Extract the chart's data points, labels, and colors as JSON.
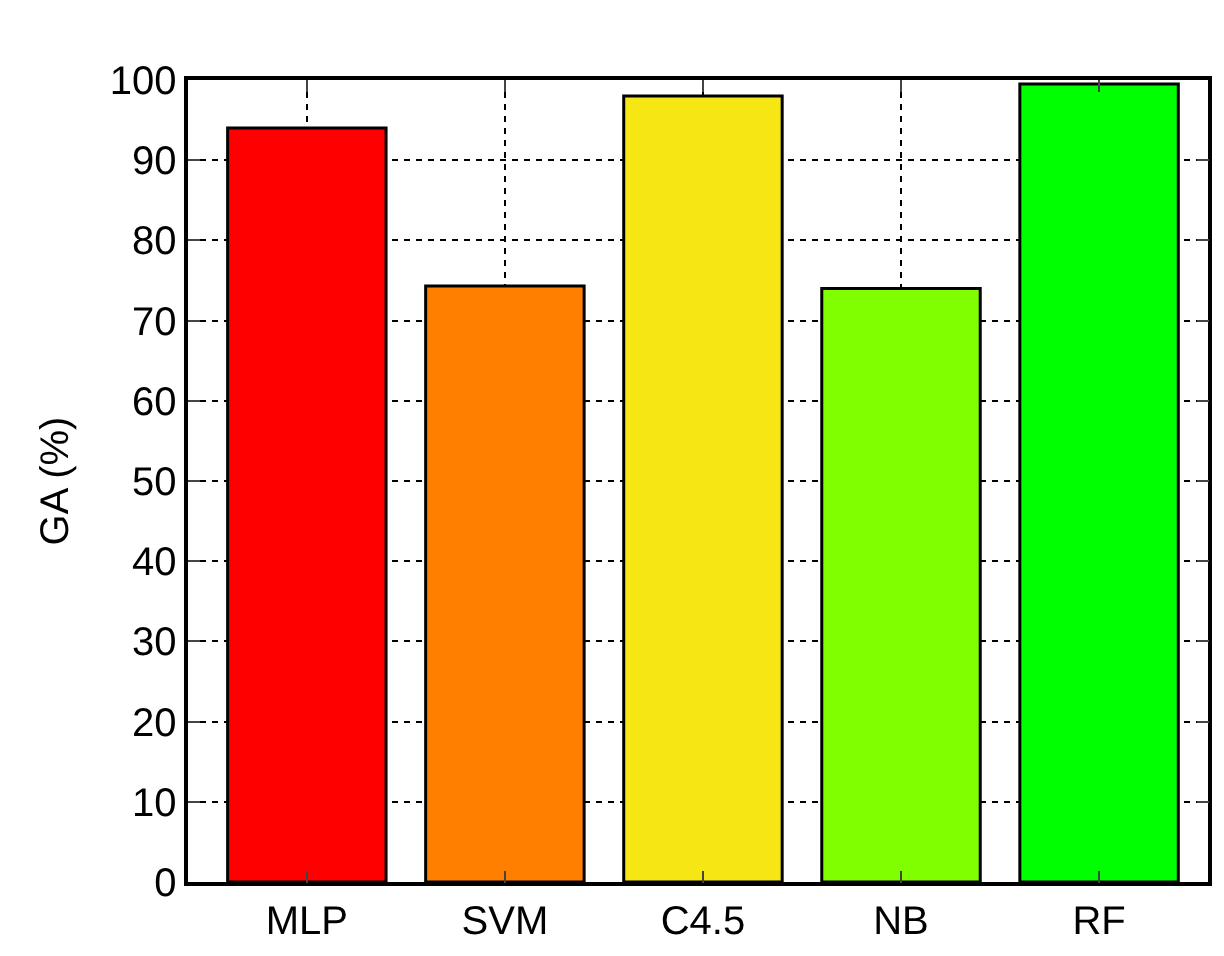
{
  "chart_data": {
    "type": "bar",
    "ylabel": "GA (%)",
    "categories": [
      "MLP",
      "SVM",
      "C4.5",
      "NB",
      "RF"
    ],
    "values": [
      94,
      74.3,
      98,
      74,
      99.5
    ],
    "colors": [
      "#ff0000",
      "#ff8000",
      "#f5e614",
      "#80ff00",
      "#00ff00"
    ],
    "ylim": [
      0,
      100
    ],
    "yticks": [
      0,
      10,
      20,
      30,
      40,
      50,
      60,
      70,
      80,
      90,
      100
    ],
    "grid": true
  }
}
